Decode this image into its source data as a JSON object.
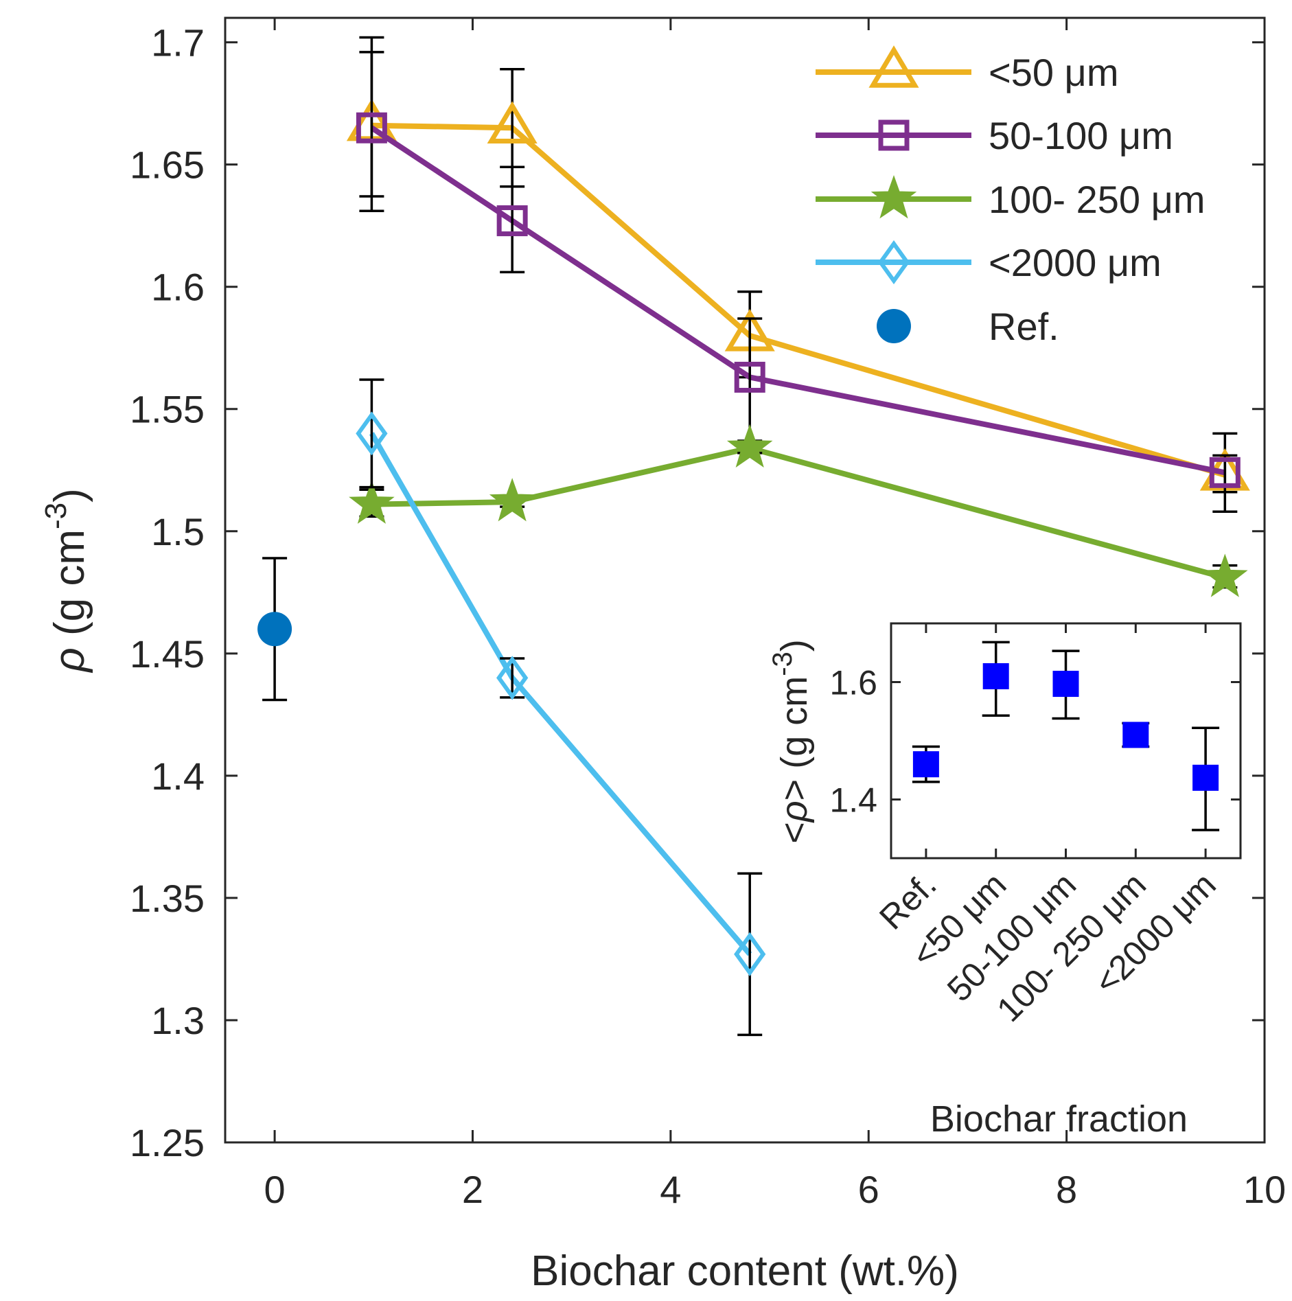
{
  "chart_data": [
    {
      "type": "line",
      "title": "",
      "xlabel": "Biochar content (wt.%)",
      "ylabel_symbol": "ρ",
      "ylabel_unit": " (g cm",
      "ylabel_exp": "-3",
      "ylabel_close": ")",
      "xlim": [
        -0.5,
        10
      ],
      "ylim": [
        1.25,
        1.71
      ],
      "xticks": [
        0,
        2,
        4,
        6,
        8,
        10
      ],
      "xtick_labels": [
        "0",
        "2",
        "4",
        "6",
        "8",
        "10"
      ],
      "yticks": [
        1.25,
        1.3,
        1.35,
        1.4,
        1.45,
        1.5,
        1.55,
        1.6,
        1.65,
        1.7
      ],
      "ytick_labels": [
        "1.25",
        "1.3",
        "1.35",
        "1.4",
        "1.45",
        "1.5",
        "1.55",
        "1.6",
        "1.65",
        "1.7"
      ],
      "grid": false,
      "legend_position": "top-right",
      "series": [
        {
          "name": "<50 μm",
          "color": "#EDB120",
          "marker": "triangle",
          "x": [
            0.98,
            2.4,
            4.8,
            9.6
          ],
          "y": [
            1.666,
            1.665,
            1.58,
            1.523
          ],
          "err_lo": [
            1.637,
            1.641,
            1.563,
            1.508
          ],
          "err_hi": [
            1.696,
            1.689,
            1.598,
            1.54
          ]
        },
        {
          "name": "50-100 μm",
          "color": "#7E2F8E",
          "marker": "square",
          "x": [
            0.98,
            2.4,
            4.8,
            9.6
          ],
          "y": [
            1.665,
            1.627,
            1.563,
            1.524
          ],
          "err_lo": [
            1.631,
            1.606,
            1.535,
            1.516
          ],
          "err_hi": [
            1.702,
            1.649,
            1.587,
            1.531
          ]
        },
        {
          "name": "100- 250 μm",
          "color": "#77AC30",
          "marker": "star",
          "x": [
            0.98,
            2.4,
            4.8,
            9.6
          ],
          "y": [
            1.511,
            1.512,
            1.534,
            1.481
          ],
          "err_lo": [
            1.506,
            1.51,
            1.532,
            1.477
          ],
          "err_hi": [
            1.517,
            1.513,
            1.537,
            1.486
          ]
        },
        {
          "name": "<2000 μm",
          "color": "#4DBEEE",
          "marker": "diamond",
          "x": [
            0.98,
            2.4,
            4.8
          ],
          "y": [
            1.54,
            1.44,
            1.327
          ],
          "err_lo": [
            1.518,
            1.432,
            1.294
          ],
          "err_hi": [
            1.562,
            1.448,
            1.36
          ]
        },
        {
          "name": "Ref.",
          "color": "#0072BD",
          "marker": "circle",
          "line": false,
          "x": [
            0
          ],
          "y": [
            1.46
          ],
          "err_lo": [
            1.431
          ],
          "err_hi": [
            1.489
          ]
        }
      ]
    },
    {
      "type": "scatter",
      "title": "",
      "xlabel": "Biochar fraction",
      "ylabel_open": "<",
      "ylabel_symbol": "ρ",
      "ylabel_unit": "> (g cm",
      "ylabel_exp": "-3",
      "ylabel_close": ")",
      "ylim": [
        1.3,
        1.7
      ],
      "yticks": [
        1.4,
        1.6
      ],
      "ytick_labels": [
        "1.4",
        "1.6"
      ],
      "categories": [
        "Ref.",
        "<50 μm",
        "50-100 μm",
        "100- 250 μm",
        "<2000 μm"
      ],
      "color": "#0000FF",
      "marker": "square",
      "values": [
        1.46,
        1.61,
        1.597,
        1.51,
        1.437
      ],
      "err_lo": [
        1.43,
        1.543,
        1.538,
        1.49,
        1.348
      ],
      "err_hi": [
        1.49,
        1.668,
        1.653,
        1.53,
        1.522
      ]
    }
  ]
}
